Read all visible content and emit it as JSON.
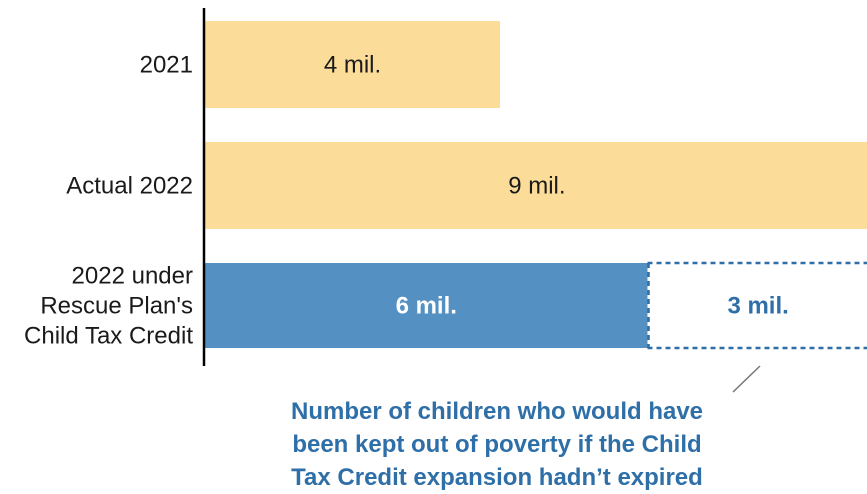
{
  "chart_data": {
    "type": "bar",
    "orientation": "horizontal",
    "stacked": true,
    "unit": "mil.",
    "categories": [
      [
        "2021"
      ],
      [
        "Actual 2022"
      ],
      [
        "2022 under",
        "Rescue Plan's",
        "Child Tax Credit"
      ]
    ],
    "series": [
      {
        "values": [
          4,
          9,
          6
        ],
        "labels": [
          "4 mil.",
          "9 mil.",
          "6 mil."
        ]
      },
      {
        "values": [
          0,
          0,
          3
        ],
        "labels": [
          "",
          "",
          "3 mil."
        ]
      }
    ],
    "xlim": [
      0,
      9
    ],
    "annotation": [
      "Number of children who would have",
      "been kept out of poverty if the Child",
      "Tax Credit expansion hadn’t expired"
    ],
    "grid": false,
    "legend": "none"
  },
  "colors": {
    "actual_2021": "#fbdc98",
    "actual_2022": "#fbdc98",
    "rescue_plan": "#5590c2",
    "lost_outline": "#2f6fa8",
    "label_dark": "#1a1a1a",
    "label_light": "#ffffff",
    "annotation": "#2f6fa8",
    "axis": "#000000",
    "leader": "#777777"
  }
}
